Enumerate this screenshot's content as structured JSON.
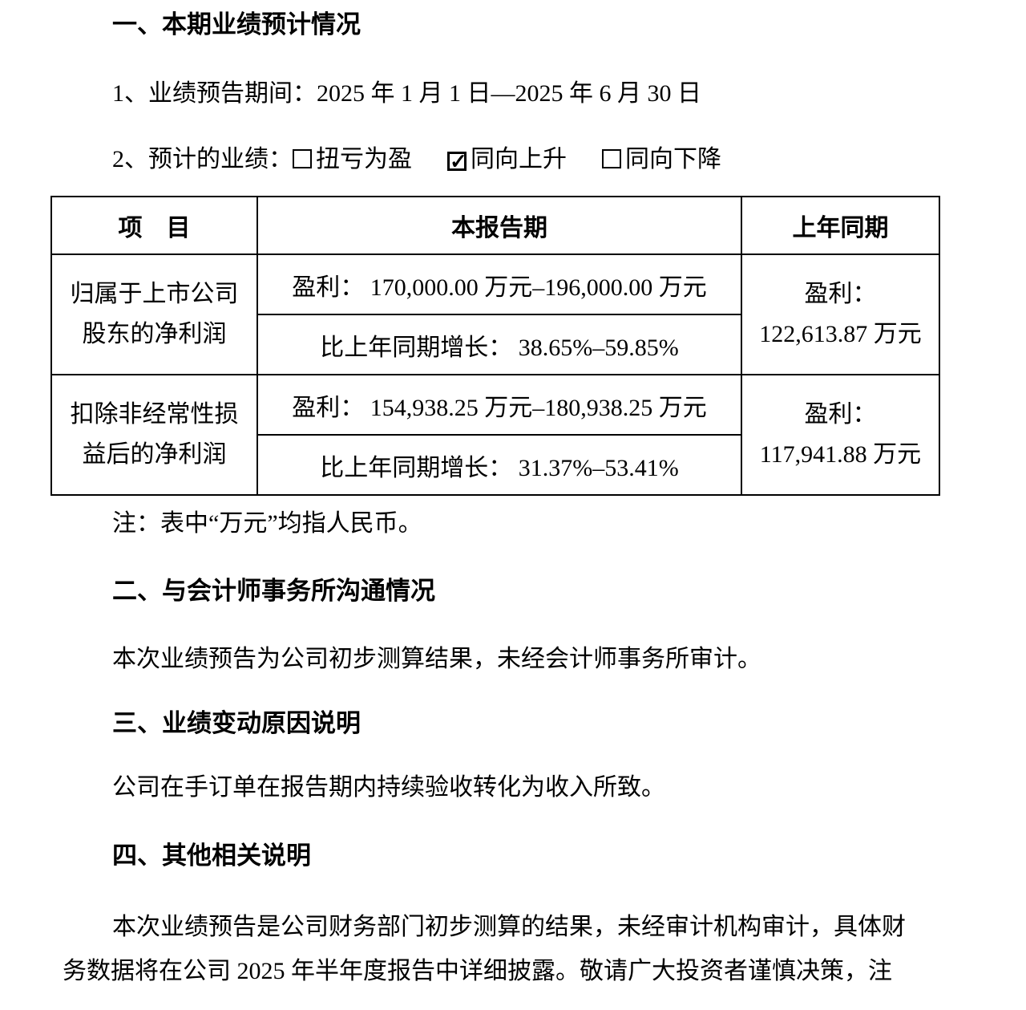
{
  "document": {
    "section1": {
      "heading": "一、本期业绩预计情况",
      "item1": "1、业绩预告期间：2025 年 1 月 1 日—2025 年 6 月 30 日",
      "item2_label": "2、预计的业绩：",
      "check_glyph": "✓",
      "options": [
        {
          "label": "扭亏为盈",
          "checked": false
        },
        {
          "label": "同向上升",
          "checked": true
        },
        {
          "label": "同向下降",
          "checked": false
        }
      ]
    },
    "table": {
      "headers": {
        "item": "项　目",
        "current": "本报告期",
        "prior": "上年同期"
      },
      "rows": [
        {
          "item_line1": "归属于上市公司",
          "item_line2": "股东的净利润",
          "profit": "盈利： 170,000.00 万元–196,000.00 万元",
          "growth": "比上年同期增长： 38.65%–59.85%",
          "prior_line1": "盈利：",
          "prior_line2": "122,613.87 万元"
        },
        {
          "item_line1": "扣除非经常性损",
          "item_line2": "益后的净利润",
          "profit": "盈利： 154,938.25 万元–180,938.25 万元",
          "growth": "比上年同期增长： 31.37%–53.41%",
          "prior_line1": "盈利：",
          "prior_line2": "117,941.88 万元"
        }
      ]
    },
    "table_note": "注：表中“万元”均指人民币。",
    "section2": {
      "heading": "二、与会计师事务所沟通情况",
      "body": "本次业绩预告为公司初步测算结果，未经会计师事务所审计。"
    },
    "section3": {
      "heading": "三、业绩变动原因说明",
      "body": "公司在手订单在报告期内持续验收转化为收入所致。"
    },
    "section4": {
      "heading": "四、其他相关说明",
      "body_line1": "本次业绩预告是公司财务部门初步测算的结果，未经审计机构审计，具体财",
      "body_line2": "务数据将在公司 2025 年半年度报告中详细披露。敬请广大投资者谨慎决策，注"
    }
  }
}
